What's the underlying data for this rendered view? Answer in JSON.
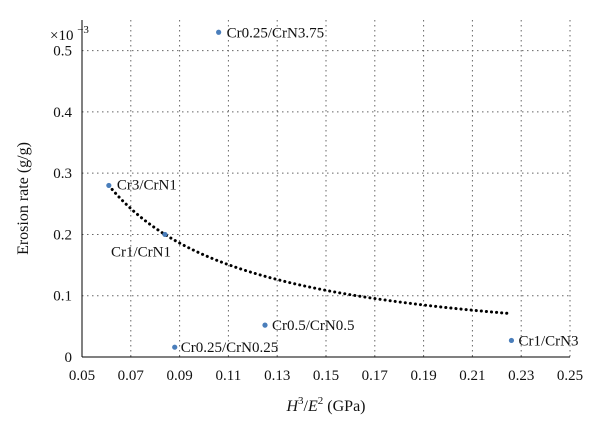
{
  "chart_data": {
    "type": "scatter",
    "title": "",
    "xlabel": {
      "base": "H",
      "sup1": "3",
      "sep": "/",
      "base2": "E",
      "sup2": "2",
      "unit": " (GPa)"
    },
    "ylabel": "Erosion rate (g/g)",
    "y_scale_label": {
      "prefix": "×10",
      "exp": "−3"
    },
    "xlim": [
      0.05,
      0.25
    ],
    "ylim": [
      0,
      0.55
    ],
    "x_ticks": [
      "0.05",
      "0.07",
      "0.09",
      "0.11",
      "0.13",
      "0.15",
      "0.17",
      "0.19",
      "0.21",
      "0.23",
      "0.25"
    ],
    "y_ticks": [
      "0",
      "0.1",
      "0.2",
      "0.3",
      "0.4",
      "0.5"
    ],
    "grid": true,
    "point_color": "#4a7ebb",
    "trend_color": "#000000",
    "points": [
      {
        "label": "Cr0.25/CrN3.75",
        "x": 0.106,
        "y": 0.53
      },
      {
        "label": "Cr3/CrN1",
        "x": 0.061,
        "y": 0.28
      },
      {
        "label": "Cr1/CrN1",
        "x": 0.084,
        "y": 0.2
      },
      {
        "label": "Cr0.5/CrN0.5",
        "x": 0.125,
        "y": 0.052
      },
      {
        "label": "Cr0.25/CrN0.25",
        "x": 0.088,
        "y": 0.016
      },
      {
        "label": "Cr1/CrN3",
        "x": 0.226,
        "y": 0.027
      }
    ],
    "trendline": {
      "type": "power",
      "a": 0.01484,
      "b": -1.05,
      "x_range": [
        0.061,
        0.226
      ]
    }
  }
}
